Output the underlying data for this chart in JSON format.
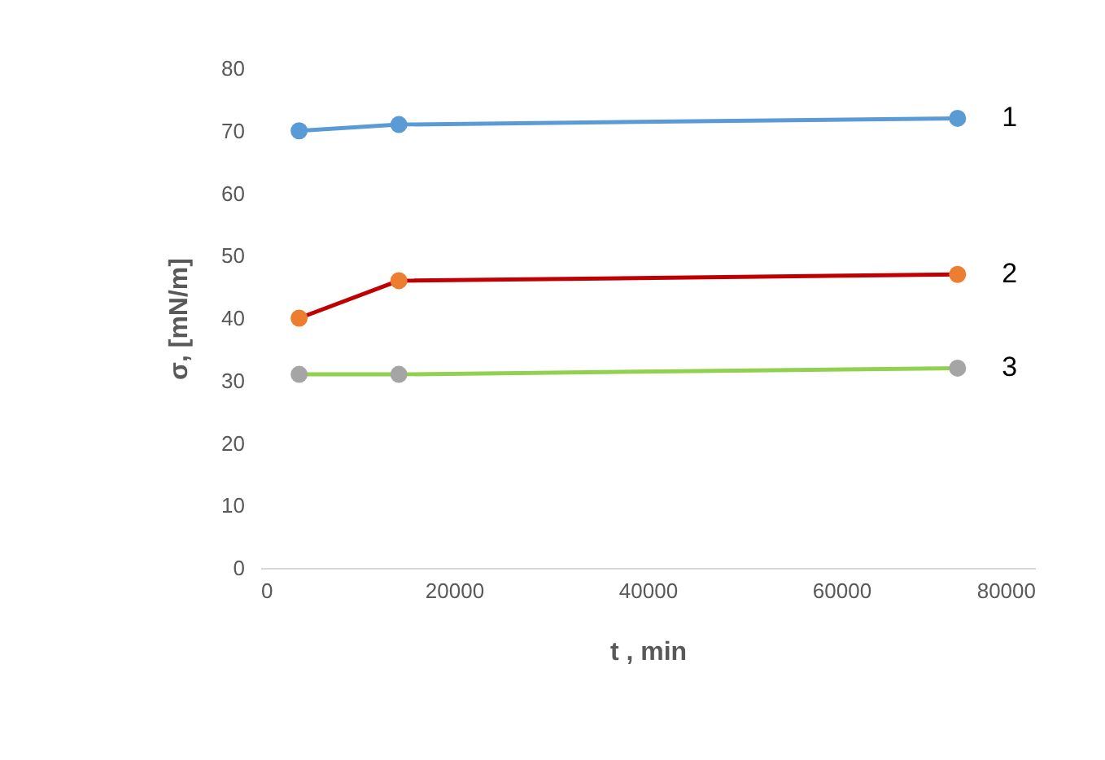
{
  "chart_data": {
    "type": "line",
    "xlabel": "t , min",
    "ylabel": "σ, [mN/m]",
    "x": [
      4000,
      14300,
      72000
    ],
    "series": [
      {
        "name": "1",
        "color": "#5b9bd5",
        "colors": [
          "#5b9bd5",
          "#5b9bd5",
          "#5b9bd5"
        ],
        "values": [
          70,
          71,
          72
        ]
      },
      {
        "name": "2",
        "color": "#c00000",
        "colors": [
          "#ed7d31",
          "#ed7d31",
          "#ed7d31"
        ],
        "values": [
          40,
          46,
          47
        ]
      },
      {
        "name": "3",
        "color": "#92d050",
        "colors": [
          "#a5a5a5",
          "#a5a5a5",
          "#a5a5a5"
        ],
        "values": [
          31,
          31,
          32
        ]
      }
    ],
    "xlim": [
      0,
      80000
    ],
    "ylim": [
      0,
      80
    ],
    "xticks": [
      0,
      20000,
      40000,
      60000,
      80000
    ],
    "yticks": [
      0,
      10,
      20,
      30,
      40,
      50,
      60,
      70,
      80
    ],
    "marker": "circle",
    "line_style": "solid"
  }
}
